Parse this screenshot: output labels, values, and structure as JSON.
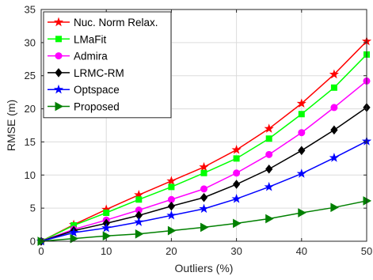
{
  "chart_data": {
    "type": "line",
    "title": "",
    "xlabel": "Outliers (%)",
    "ylabel": "RMSE (m)",
    "xlim": [
      0,
      50
    ],
    "ylim": [
      0,
      35
    ],
    "xticks": [
      0,
      10,
      20,
      30,
      40,
      50
    ],
    "yticks": [
      0,
      5,
      10,
      15,
      20,
      25,
      30,
      35
    ],
    "grid": true,
    "legend_position": "top-left",
    "x": [
      0,
      5,
      10,
      15,
      20,
      25,
      30,
      35,
      40,
      45,
      50
    ],
    "series": [
      {
        "name": "Nuc. Norm Relax.",
        "color": "#ff0000",
        "marker": "star",
        "values": [
          0,
          2.5,
          4.8,
          7.0,
          9.1,
          11.2,
          13.8,
          17.0,
          20.8,
          25.2,
          30.2
        ]
      },
      {
        "name": "LMaFit",
        "color": "#00ff00",
        "marker": "square",
        "values": [
          0,
          2.4,
          4.3,
          6.3,
          8.2,
          10.3,
          12.5,
          15.5,
          19.2,
          23.2,
          28.2
        ]
      },
      {
        "name": "Admira",
        "color": "#ff00ff",
        "marker": "circle",
        "values": [
          0,
          1.8,
          3.2,
          4.7,
          6.3,
          7.9,
          10.3,
          13.1,
          16.4,
          20.2,
          24.2
        ]
      },
      {
        "name": "LRMC-RM",
        "color": "#000000",
        "marker": "diamond",
        "values": [
          0,
          1.6,
          2.7,
          3.9,
          5.3,
          6.6,
          8.6,
          10.9,
          13.7,
          16.8,
          20.2
        ]
      },
      {
        "name": "Optspace",
        "color": "#0000ff",
        "marker": "star",
        "values": [
          0,
          1.3,
          2.0,
          2.9,
          3.9,
          4.9,
          6.4,
          8.2,
          10.2,
          12.6,
          15.1
        ]
      },
      {
        "name": "Proposed",
        "color": "#008000",
        "marker": "triangle-right",
        "values": [
          0,
          0.4,
          0.8,
          1.1,
          1.6,
          2.1,
          2.7,
          3.4,
          4.3,
          5.1,
          6.1
        ]
      }
    ]
  }
}
